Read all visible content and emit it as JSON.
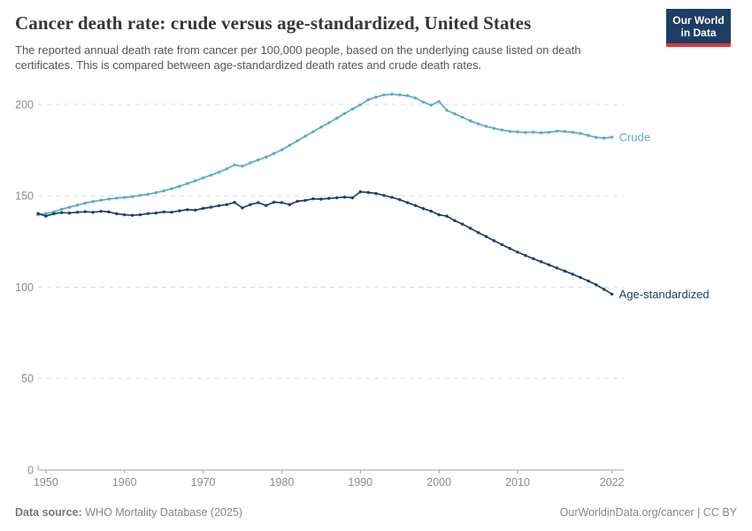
{
  "header": {
    "title": "Cancer death rate: crude versus age-standardized, United States",
    "subtitle_line1": "The reported annual death rate from cancer per 100,000 people, based on the underlying cause listed on death",
    "subtitle_line2": "certificates. This is compared between age-standardized death rates and crude death rates.",
    "logo": {
      "line1": "Our World",
      "line2": "in Data"
    }
  },
  "chart_data": {
    "type": "line",
    "title": "Cancer death rate: crude versus age-standardized, United States",
    "xlabel": "",
    "ylabel": "",
    "grid": "horizontal-dashed",
    "legend_position": "end-of-line",
    "xlim": [
      1949,
      2023.5
    ],
    "ylim": [
      0,
      210
    ],
    "xticks": [
      1950,
      1960,
      1970,
      1980,
      1990,
      2000,
      2010,
      2022
    ],
    "yticks": [
      0,
      50,
      100,
      150,
      200
    ],
    "x": [
      1949,
      1950,
      1951,
      1952,
      1953,
      1954,
      1955,
      1956,
      1957,
      1958,
      1959,
      1960,
      1961,
      1962,
      1963,
      1964,
      1965,
      1966,
      1967,
      1968,
      1969,
      1970,
      1971,
      1972,
      1973,
      1974,
      1975,
      1976,
      1977,
      1978,
      1979,
      1980,
      1981,
      1982,
      1983,
      1984,
      1985,
      1986,
      1987,
      1988,
      1989,
      1990,
      1991,
      1992,
      1993,
      1994,
      1995,
      1996,
      1997,
      1998,
      1999,
      2000,
      2001,
      2002,
      2003,
      2004,
      2005,
      2006,
      2007,
      2008,
      2009,
      2010,
      2011,
      2012,
      2013,
      2014,
      2015,
      2016,
      2017,
      2018,
      2019,
      2020,
      2021,
      2022
    ],
    "series": [
      {
        "name": "Crude",
        "color": "#5aabc0",
        "values": [
          139.6,
          140.3,
          141.2,
          142.6,
          143.8,
          144.9,
          146.0,
          146.9,
          147.6,
          148.2,
          148.7,
          149.1,
          149.6,
          150.2,
          150.9,
          151.7,
          152.7,
          153.9,
          155.2,
          156.7,
          158.2,
          159.8,
          161.3,
          162.9,
          164.8,
          166.9,
          166.2,
          168.0,
          169.6,
          171.2,
          173.1,
          175.2,
          177.6,
          180.1,
          182.6,
          185.1,
          187.6,
          190.0,
          192.5,
          195.0,
          197.5,
          199.8,
          202.5,
          204.0,
          205.2,
          205.6,
          205.2,
          204.8,
          203.5,
          201.3,
          199.6,
          201.6,
          196.8,
          194.8,
          193.0,
          191.0,
          189.4,
          188.0,
          186.9,
          186.0,
          185.3,
          185.0,
          184.6,
          184.9,
          184.5,
          184.8,
          185.4,
          185.2,
          184.8,
          184.1,
          183.0,
          182.0,
          181.6,
          182.1
        ]
      },
      {
        "name": "Age-standardized",
        "color": "#1d4068",
        "values": [
          140.3,
          138.9,
          140.2,
          140.8,
          140.6,
          141.0,
          141.3,
          141.0,
          141.5,
          141.2,
          140.2,
          139.6,
          139.3,
          139.6,
          140.3,
          140.6,
          141.2,
          141.0,
          141.8,
          142.4,
          142.2,
          143.1,
          143.8,
          144.6,
          145.2,
          146.4,
          143.4,
          145.2,
          146.3,
          144.7,
          146.5,
          146.3,
          145.2,
          147.0,
          147.5,
          148.4,
          148.2,
          148.6,
          148.9,
          149.3,
          148.9,
          152.2,
          151.8,
          151.3,
          150.2,
          149.2,
          147.9,
          146.3,
          144.7,
          143.0,
          141.6,
          139.6,
          138.9,
          136.4,
          134.5,
          132.2,
          129.9,
          127.7,
          125.4,
          123.3,
          121.2,
          119.2,
          117.4,
          115.6,
          113.9,
          112.2,
          110.5,
          108.8,
          107.1,
          105.3,
          103.4,
          101.3,
          98.8,
          96.2
        ]
      }
    ],
    "style": {
      "grid_color": "#dcdcdc",
      "axis_color": "#a3a3a3",
      "tick_label_color": "#8c8c8c"
    }
  },
  "footer": {
    "source_label": "Data source:",
    "source_value": " WHO Mortality Database (2025)",
    "credit": "OurWorldinData.org/cancer | CC BY"
  }
}
